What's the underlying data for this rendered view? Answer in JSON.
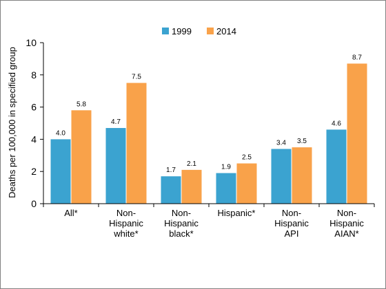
{
  "chart_data": {
    "type": "bar",
    "title": "",
    "xlabel": "",
    "ylabel": "Deaths per 100,000 in specified group",
    "ylim": [
      0,
      10
    ],
    "yticks": [
      0,
      2,
      4,
      6,
      8,
      10
    ],
    "grid": false,
    "legend_position": "top-center",
    "categories": [
      [
        "All*"
      ],
      [
        "Non-",
        "Hispanic",
        "white*"
      ],
      [
        "Non-",
        "Hispanic",
        "black*"
      ],
      [
        "Hispanic*"
      ],
      [
        "Non-",
        "Hispanic",
        "API"
      ],
      [
        "Non-",
        "Hispanic",
        "AIAN*"
      ]
    ],
    "series": [
      {
        "name": "1999",
        "color": "#3ba3d0",
        "values": [
          4.0,
          4.7,
          1.7,
          1.9,
          3.4,
          4.6
        ]
      },
      {
        "name": "2014",
        "color": "#f9a24a",
        "values": [
          5.8,
          7.5,
          2.1,
          2.5,
          3.5,
          8.7
        ]
      }
    ]
  }
}
